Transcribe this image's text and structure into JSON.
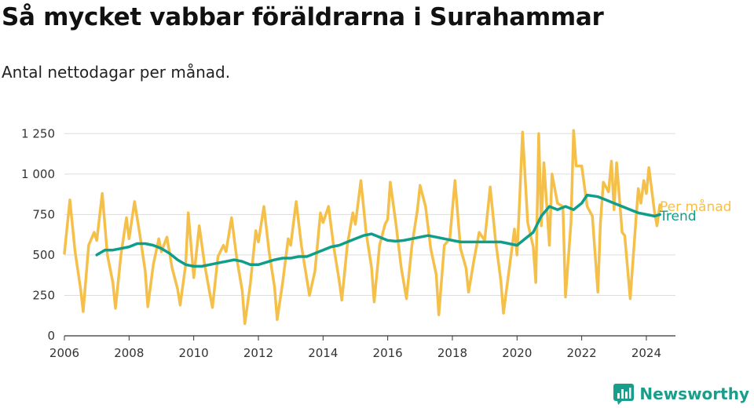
{
  "chart_data": {
    "type": "line",
    "title": "Så mycket vabbar föräldrarna i Surahammar",
    "subtitle": "Antal nettodagar per månad.",
    "xlabel": "",
    "ylabel": "",
    "xlim": [
      2006,
      2024.9
    ],
    "ylim": [
      0,
      1300
    ],
    "y_ticks": [
      0,
      250,
      500,
      750,
      1000,
      1250
    ],
    "y_tick_labels": [
      "0",
      "250",
      "500",
      "750",
      "1 000",
      "1 250"
    ],
    "x_ticks": [
      2006,
      2008,
      2010,
      2012,
      2014,
      2016,
      2018,
      2020,
      2022,
      2024
    ],
    "x_tick_labels": [
      "2006",
      "2008",
      "2010",
      "2012",
      "2014",
      "2016",
      "2018",
      "2020",
      "2022",
      "2024"
    ],
    "grid": true,
    "series": [
      {
        "name": "Per månad",
        "color": "#f5c04a",
        "points": [
          [
            2006.0,
            510
          ],
          [
            2006.17,
            840
          ],
          [
            2006.33,
            520
          ],
          [
            2006.5,
            290
          ],
          [
            2006.58,
            150
          ],
          [
            2006.75,
            560
          ],
          [
            2006.92,
            640
          ],
          [
            2007.0,
            590
          ],
          [
            2007.17,
            880
          ],
          [
            2007.33,
            500
          ],
          [
            2007.5,
            330
          ],
          [
            2007.58,
            170
          ],
          [
            2007.75,
            500
          ],
          [
            2007.92,
            730
          ],
          [
            2008.0,
            600
          ],
          [
            2008.17,
            830
          ],
          [
            2008.33,
            630
          ],
          [
            2008.5,
            400
          ],
          [
            2008.58,
            180
          ],
          [
            2008.75,
            440
          ],
          [
            2008.92,
            600
          ],
          [
            2009.0,
            520
          ],
          [
            2009.17,
            610
          ],
          [
            2009.33,
            420
          ],
          [
            2009.5,
            290
          ],
          [
            2009.58,
            190
          ],
          [
            2009.75,
            440
          ],
          [
            2009.83,
            760
          ],
          [
            2010.0,
            360
          ],
          [
            2010.17,
            680
          ],
          [
            2010.33,
            450
          ],
          [
            2010.5,
            260
          ],
          [
            2010.58,
            175
          ],
          [
            2010.75,
            490
          ],
          [
            2010.92,
            560
          ],
          [
            2011.0,
            520
          ],
          [
            2011.17,
            730
          ],
          [
            2011.33,
            480
          ],
          [
            2011.5,
            280
          ],
          [
            2011.58,
            75
          ],
          [
            2011.75,
            320
          ],
          [
            2011.92,
            650
          ],
          [
            2012.0,
            580
          ],
          [
            2012.17,
            800
          ],
          [
            2012.33,
            520
          ],
          [
            2012.5,
            300
          ],
          [
            2012.58,
            100
          ],
          [
            2012.75,
            330
          ],
          [
            2012.92,
            600
          ],
          [
            2013.0,
            560
          ],
          [
            2013.17,
            830
          ],
          [
            2013.33,
            560
          ],
          [
            2013.5,
            350
          ],
          [
            2013.58,
            250
          ],
          [
            2013.75,
            400
          ],
          [
            2013.92,
            760
          ],
          [
            2014.0,
            700
          ],
          [
            2014.17,
            800
          ],
          [
            2014.33,
            550
          ],
          [
            2014.5,
            340
          ],
          [
            2014.58,
            220
          ],
          [
            2014.75,
            560
          ],
          [
            2014.92,
            760
          ],
          [
            2015.0,
            690
          ],
          [
            2015.17,
            960
          ],
          [
            2015.33,
            640
          ],
          [
            2015.5,
            420
          ],
          [
            2015.58,
            210
          ],
          [
            2015.75,
            560
          ],
          [
            2015.92,
            690
          ],
          [
            2016.0,
            720
          ],
          [
            2016.08,
            950
          ],
          [
            2016.25,
            700
          ],
          [
            2016.42,
            420
          ],
          [
            2016.58,
            230
          ],
          [
            2016.75,
            560
          ],
          [
            2016.92,
            780
          ],
          [
            2017.0,
            930
          ],
          [
            2017.17,
            800
          ],
          [
            2017.33,
            540
          ],
          [
            2017.5,
            380
          ],
          [
            2017.58,
            130
          ],
          [
            2017.75,
            560
          ],
          [
            2017.92,
            600
          ],
          [
            2018.0,
            780
          ],
          [
            2018.08,
            960
          ],
          [
            2018.25,
            540
          ],
          [
            2018.42,
            420
          ],
          [
            2018.5,
            270
          ],
          [
            2018.67,
            470
          ],
          [
            2018.83,
            640
          ],
          [
            2019.0,
            590
          ],
          [
            2019.17,
            920
          ],
          [
            2019.33,
            600
          ],
          [
            2019.5,
            340
          ],
          [
            2019.58,
            140
          ],
          [
            2019.75,
            400
          ],
          [
            2019.92,
            660
          ],
          [
            2020.0,
            500
          ],
          [
            2020.08,
            840
          ],
          [
            2020.17,
            1260
          ],
          [
            2020.33,
            700
          ],
          [
            2020.5,
            550
          ],
          [
            2020.58,
            330
          ],
          [
            2020.67,
            1250
          ],
          [
            2020.75,
            680
          ],
          [
            2020.83,
            1070
          ],
          [
            2021.0,
            560
          ],
          [
            2021.08,
            1000
          ],
          [
            2021.25,
            820
          ],
          [
            2021.42,
            800
          ],
          [
            2021.5,
            240
          ],
          [
            2021.67,
            700
          ],
          [
            2021.75,
            1270
          ],
          [
            2021.83,
            1050
          ],
          [
            2022.0,
            1050
          ],
          [
            2022.17,
            800
          ],
          [
            2022.33,
            740
          ],
          [
            2022.5,
            270
          ],
          [
            2022.58,
            700
          ],
          [
            2022.67,
            950
          ],
          [
            2022.83,
            890
          ],
          [
            2022.92,
            1080
          ],
          [
            2023.0,
            780
          ],
          [
            2023.08,
            1070
          ],
          [
            2023.25,
            640
          ],
          [
            2023.33,
            620
          ],
          [
            2023.5,
            230
          ],
          [
            2023.67,
            700
          ],
          [
            2023.75,
            910
          ],
          [
            2023.83,
            820
          ],
          [
            2023.92,
            960
          ],
          [
            2024.0,
            880
          ],
          [
            2024.08,
            1040
          ],
          [
            2024.25,
            770
          ],
          [
            2024.33,
            680
          ],
          [
            2024.42,
            810
          ]
        ]
      },
      {
        "name": "Trend",
        "color": "#0f9e8a",
        "points": [
          [
            2007.0,
            500
          ],
          [
            2007.25,
            530
          ],
          [
            2007.5,
            530
          ],
          [
            2007.75,
            540
          ],
          [
            2008.0,
            550
          ],
          [
            2008.25,
            570
          ],
          [
            2008.5,
            570
          ],
          [
            2008.75,
            560
          ],
          [
            2009.0,
            540
          ],
          [
            2009.25,
            510
          ],
          [
            2009.5,
            470
          ],
          [
            2009.75,
            440
          ],
          [
            2010.0,
            430
          ],
          [
            2010.25,
            430
          ],
          [
            2010.5,
            440
          ],
          [
            2010.75,
            450
          ],
          [
            2011.0,
            460
          ],
          [
            2011.25,
            470
          ],
          [
            2011.5,
            460
          ],
          [
            2011.75,
            440
          ],
          [
            2012.0,
            440
          ],
          [
            2012.25,
            455
          ],
          [
            2012.5,
            470
          ],
          [
            2012.75,
            480
          ],
          [
            2013.0,
            480
          ],
          [
            2013.25,
            490
          ],
          [
            2013.5,
            490
          ],
          [
            2013.75,
            510
          ],
          [
            2014.0,
            530
          ],
          [
            2014.25,
            550
          ],
          [
            2014.5,
            560
          ],
          [
            2014.75,
            580
          ],
          [
            2015.0,
            600
          ],
          [
            2015.25,
            620
          ],
          [
            2015.5,
            630
          ],
          [
            2015.75,
            610
          ],
          [
            2016.0,
            590
          ],
          [
            2016.25,
            585
          ],
          [
            2016.5,
            590
          ],
          [
            2016.75,
            600
          ],
          [
            2017.0,
            610
          ],
          [
            2017.25,
            620
          ],
          [
            2017.5,
            610
          ],
          [
            2017.75,
            600
          ],
          [
            2018.0,
            590
          ],
          [
            2018.25,
            580
          ],
          [
            2018.5,
            580
          ],
          [
            2018.75,
            580
          ],
          [
            2019.0,
            580
          ],
          [
            2019.25,
            580
          ],
          [
            2019.5,
            580
          ],
          [
            2019.75,
            570
          ],
          [
            2020.0,
            560
          ],
          [
            2020.25,
            600
          ],
          [
            2020.5,
            640
          ],
          [
            2020.75,
            740
          ],
          [
            2021.0,
            800
          ],
          [
            2021.25,
            780
          ],
          [
            2021.5,
            800
          ],
          [
            2021.75,
            780
          ],
          [
            2022.0,
            820
          ],
          [
            2022.17,
            870
          ],
          [
            2022.5,
            860
          ],
          [
            2022.75,
            840
          ],
          [
            2023.0,
            820
          ],
          [
            2023.25,
            800
          ],
          [
            2023.5,
            780
          ],
          [
            2023.75,
            760
          ],
          [
            2024.0,
            750
          ],
          [
            2024.25,
            740
          ],
          [
            2024.42,
            750
          ]
        ]
      }
    ]
  },
  "brand": {
    "name": "Newsworthy",
    "color": "#1a9e8c"
  }
}
